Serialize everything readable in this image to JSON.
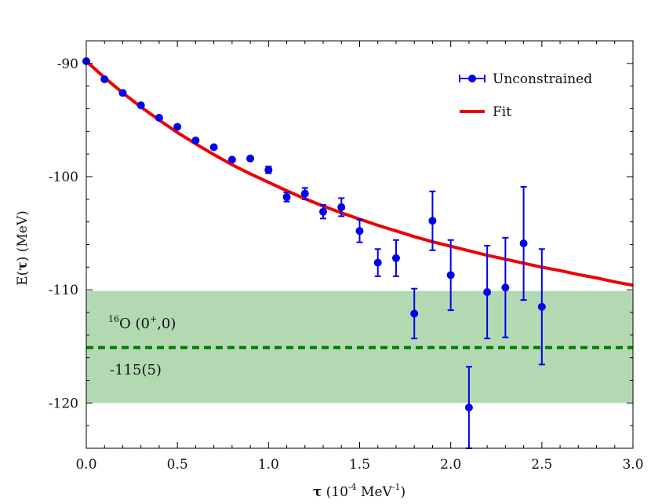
{
  "chart_data": {
    "type": "scatter",
    "xlabel": {
      "symbol": "τ",
      "open": " (10",
      "exp1": "-4",
      "mid": " MeV",
      "exp2": "-1",
      "close": ")"
    },
    "ylabel": {
      "main": "E(",
      "symbol": "τ",
      "close": ") (MeV)"
    },
    "xlim": [
      0,
      3.0
    ],
    "ylim": [
      -124.0,
      -88.0
    ],
    "xticks": [
      0.0,
      0.5,
      1.0,
      1.5,
      2.0,
      2.5,
      3.0
    ],
    "xtick_labels": [
      "0.0",
      "0.5",
      "1.0",
      "1.5",
      "2.0",
      "2.5",
      "3.0"
    ],
    "yticks": [
      -90,
      -100,
      -110,
      -120
    ],
    "ytick_labels": [
      "-90",
      "-100",
      "-110",
      "-120"
    ],
    "grid": false,
    "legend_position": "top-right",
    "legend": [
      "Unconstrained",
      "Fit"
    ],
    "series": [
      {
        "name": "Unconstrained",
        "color": "#0000ee",
        "points": [
          {
            "x": 0.0,
            "y": -89.8,
            "err": 0.0
          },
          {
            "x": 0.1,
            "y": -91.4,
            "err": 0.0
          },
          {
            "x": 0.2,
            "y": -92.6,
            "err": 0.0
          },
          {
            "x": 0.3,
            "y": -93.7,
            "err": 0.0
          },
          {
            "x": 0.4,
            "y": -94.8,
            "err": 0.0
          },
          {
            "x": 0.5,
            "y": -95.6,
            "err": 0.0
          },
          {
            "x": 0.6,
            "y": -96.8,
            "err": 0.0
          },
          {
            "x": 0.7,
            "y": -97.4,
            "err": 0.0
          },
          {
            "x": 0.8,
            "y": -98.5,
            "err": 0.0
          },
          {
            "x": 0.9,
            "y": -98.4,
            "err": 0.0
          },
          {
            "x": 1.0,
            "y": -99.4,
            "err": 0.3
          },
          {
            "x": 1.1,
            "y": -101.8,
            "err": 0.4
          },
          {
            "x": 1.2,
            "y": -101.5,
            "err": 0.5
          },
          {
            "x": 1.3,
            "y": -103.1,
            "err": 0.6
          },
          {
            "x": 1.4,
            "y": -102.7,
            "err": 0.8
          },
          {
            "x": 1.5,
            "y": -104.8,
            "err": 1.0
          },
          {
            "x": 1.6,
            "y": -107.6,
            "err": 1.2
          },
          {
            "x": 1.7,
            "y": -107.2,
            "err": 1.6
          },
          {
            "x": 1.8,
            "y": -112.1,
            "err": 2.2
          },
          {
            "x": 1.9,
            "y": -103.9,
            "err": 2.6
          },
          {
            "x": 2.0,
            "y": -108.7,
            "err": 3.1
          },
          {
            "x": 2.1,
            "y": -120.4,
            "err": 3.6
          },
          {
            "x": 2.2,
            "y": -110.2,
            "err": 4.1
          },
          {
            "x": 2.3,
            "y": -109.8,
            "err": 4.4
          },
          {
            "x": 2.4,
            "y": -105.9,
            "err": 5.0
          },
          {
            "x": 2.5,
            "y": -111.5,
            "err": 5.1
          }
        ]
      },
      {
        "name": "Fit",
        "color": "#ee0000",
        "type": "line",
        "curve": [
          {
            "x": 0.0,
            "y": -89.8
          },
          {
            "x": 0.1,
            "y": -91.25
          },
          {
            "x": 0.2,
            "y": -92.6
          },
          {
            "x": 0.3,
            "y": -93.85
          },
          {
            "x": 0.4,
            "y": -95.0
          },
          {
            "x": 0.5,
            "y": -96.1
          },
          {
            "x": 0.6,
            "y": -97.1
          },
          {
            "x": 0.7,
            "y": -98.05
          },
          {
            "x": 0.8,
            "y": -98.95
          },
          {
            "x": 0.9,
            "y": -99.75
          },
          {
            "x": 1.0,
            "y": -100.5
          },
          {
            "x": 1.1,
            "y": -101.25
          },
          {
            "x": 1.2,
            "y": -101.95
          },
          {
            "x": 1.3,
            "y": -102.6
          },
          {
            "x": 1.4,
            "y": -103.2
          },
          {
            "x": 1.5,
            "y": -103.75
          },
          {
            "x": 1.6,
            "y": -104.3
          },
          {
            "x": 1.7,
            "y": -104.8
          },
          {
            "x": 1.8,
            "y": -105.3
          },
          {
            "x": 1.9,
            "y": -105.75
          },
          {
            "x": 2.0,
            "y": -106.15
          },
          {
            "x": 2.1,
            "y": -106.55
          },
          {
            "x": 2.2,
            "y": -106.95
          },
          {
            "x": 2.3,
            "y": -107.3
          },
          {
            "x": 2.4,
            "y": -107.65
          },
          {
            "x": 2.5,
            "y": -108.0
          },
          {
            "x": 2.6,
            "y": -108.3
          },
          {
            "x": 2.7,
            "y": -108.65
          },
          {
            "x": 2.8,
            "y": -108.95
          },
          {
            "x": 2.9,
            "y": -109.3
          },
          {
            "x": 3.0,
            "y": -109.6
          }
        ]
      }
    ],
    "reference": {
      "nucleus_mass": "16",
      "nucleus": "O",
      "state_open": " (0",
      "state_sup": "+",
      "state_close": ",0)",
      "value_label": "-115(5)",
      "value": -115.1,
      "band": [
        -120.0,
        -110.1
      ],
      "band_color": "#b3d9b3",
      "line_color": "#008000"
    }
  }
}
